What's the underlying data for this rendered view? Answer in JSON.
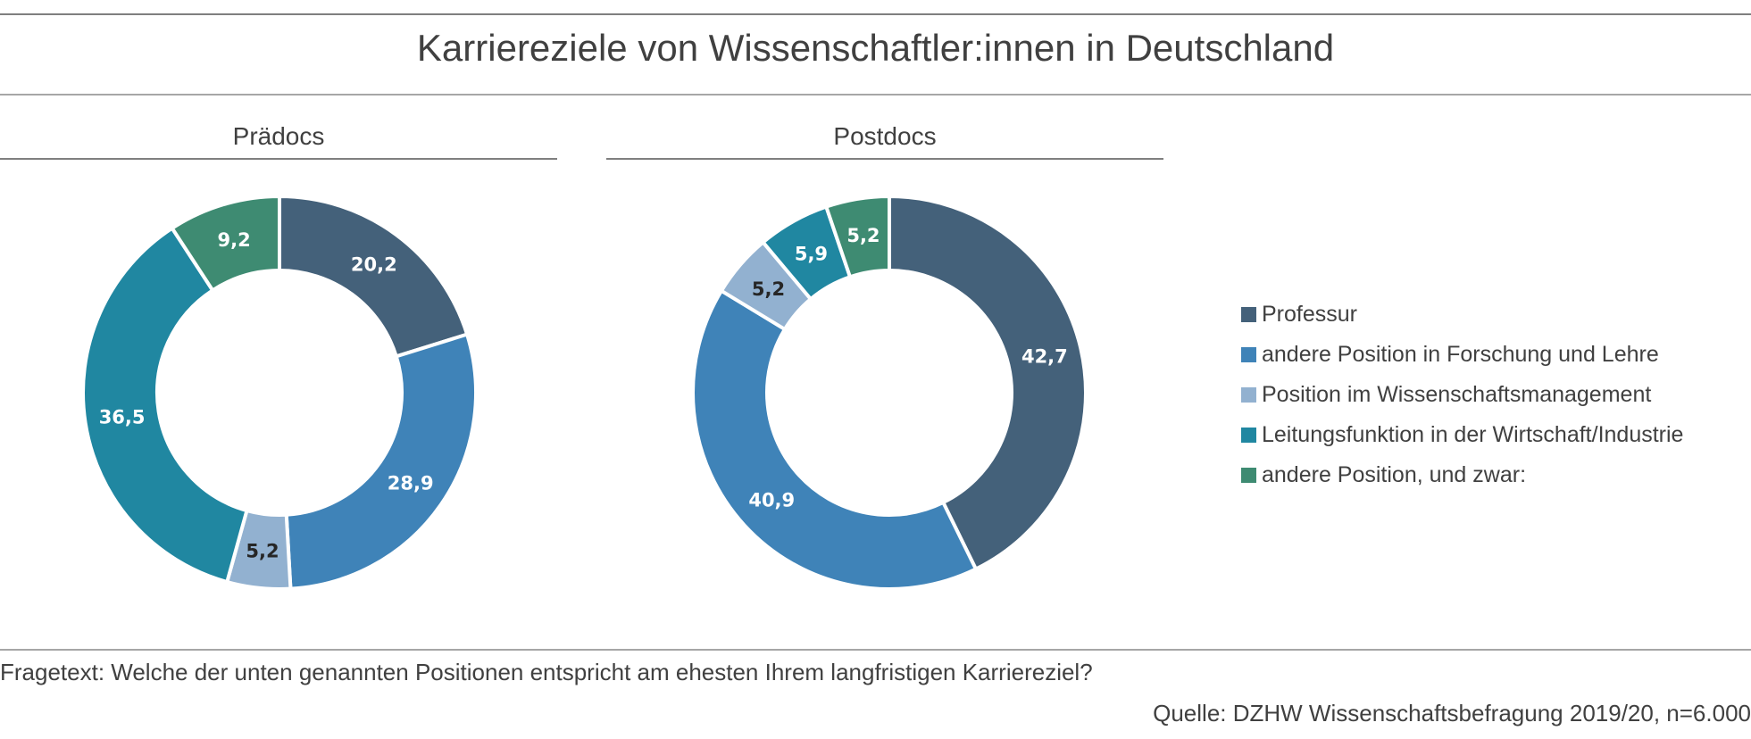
{
  "header": {
    "title": "Karriereziele von Wissenschaftler:innen in Deutschland"
  },
  "footer": {
    "question": "Fragetext: Welche der unten genannten Positionen entspricht am ehesten Ihrem langfristigen Karriereziel?",
    "source": "Quelle: DZHW Wissenschaftsbefragung 2019/20, n=6.000"
  },
  "chart_data": [
    {
      "type": "pie",
      "variant": "donut",
      "title": "Prädocs",
      "categories": [
        "Professur",
        "andere Position in Forschung und Lehre",
        "Position im Wissenschaftsmanagement",
        "Leitungsfunktion in der Wirtschaft/Industrie",
        "andere Position, und zwar:"
      ],
      "values": [
        20.2,
        28.9,
        5.2,
        36.5,
        9.2
      ],
      "labels": [
        "20,2",
        "28,9",
        "5,2",
        "36,5",
        "9,2"
      ],
      "label_colors": [
        "#ffffff",
        "#ffffff",
        "#262626",
        "#ffffff",
        "#ffffff"
      ],
      "colors": [
        "#44617a",
        "#3f83b8",
        "#92b1d0",
        "#2087a1",
        "#3e8b72"
      ],
      "start": "top, clockwise",
      "legend": "right"
    },
    {
      "type": "pie",
      "variant": "donut",
      "title": "Postdocs",
      "categories": [
        "Professur",
        "andere Position in Forschung und Lehre",
        "Position im Wissenschaftsmanagement",
        "Leitungsfunktion in der Wirtschaft/Industrie",
        "andere Position, und zwar:"
      ],
      "values": [
        42.7,
        40.9,
        5.2,
        5.9,
        5.2
      ],
      "labels": [
        "42,7",
        "40,9",
        "5,2",
        "5,9",
        "5,2"
      ],
      "label_colors": [
        "#ffffff",
        "#ffffff",
        "#262626",
        "#ffffff",
        "#ffffff"
      ],
      "colors": [
        "#44617a",
        "#3f83b8",
        "#92b1d0",
        "#2087a1",
        "#3e8b72"
      ],
      "start": "top, clockwise",
      "legend": "right"
    }
  ],
  "legend": {
    "items": [
      {
        "label": "Professur",
        "color": "#44617a"
      },
      {
        "label": "andere Position in Forschung und Lehre",
        "color": "#3f83b8"
      },
      {
        "label": "Position im Wissenschaftsmanagement",
        "color": "#92b1d0"
      },
      {
        "label": "Leitungsfunktion in der Wirtschaft/Industrie",
        "color": "#2087a1"
      },
      {
        "label": "andere Position, und zwar:",
        "color": "#3e8b72"
      }
    ]
  }
}
